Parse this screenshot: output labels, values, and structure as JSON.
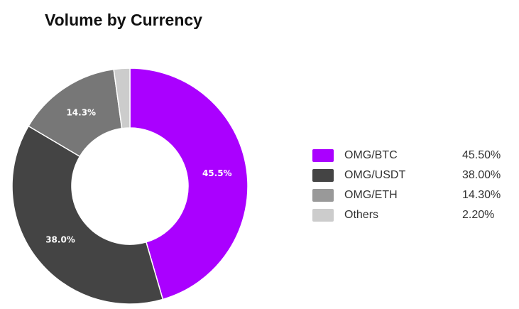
{
  "chart_data": {
    "type": "donut",
    "title": "Volume by Currency",
    "categories": [
      "OMG/BTC",
      "OMG/USDT",
      "OMG/ETH",
      "Others"
    ],
    "values": [
      45.5,
      38.0,
      14.3,
      2.2
    ],
    "value_labels": [
      "45.5%",
      "38.0%",
      "14.3%",
      null
    ],
    "legend_labels": [
      "45.50%",
      "38.00%",
      "14.30%",
      "2.20%"
    ],
    "colors": [
      "#aa00ff",
      "#444444",
      "#777777",
      "#cccccc"
    ],
    "legend_colors": [
      "#aa00ff",
      "#444444",
      "#999999",
      "#cccccc"
    ],
    "legend": "right"
  }
}
